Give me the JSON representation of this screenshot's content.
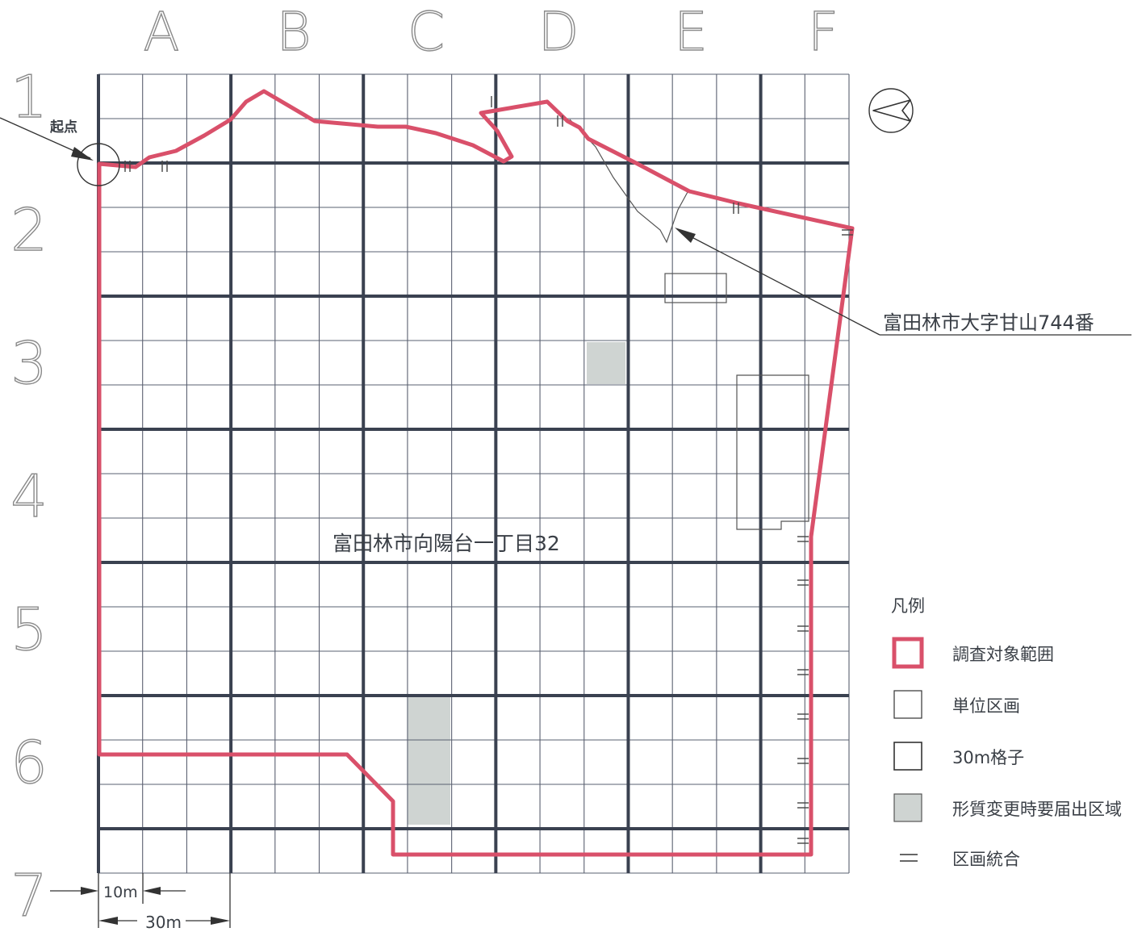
{
  "columns": [
    "A",
    "B",
    "C",
    "D",
    "E",
    "F"
  ],
  "rows": [
    "1",
    "2",
    "3",
    "4",
    "5",
    "6",
    "7"
  ],
  "start_label": "起点",
  "area_label": "富田林市向陽台一丁目32",
  "parcel_label": "富田林市大字甘山744番",
  "scale": {
    "unit_small": "10m",
    "unit_large": "30m"
  },
  "legend": {
    "title": "凡例",
    "items": [
      {
        "key": "survey",
        "label": "調査対象範囲",
        "color": "#d9506a"
      },
      {
        "key": "unit",
        "label": "単位区画"
      },
      {
        "key": "grid30",
        "label": "30m格子"
      },
      {
        "key": "notify",
        "label": "形質変更時要届出区域",
        "color": "#cfd4d2"
      },
      {
        "key": "merge",
        "label": "区画統合"
      }
    ]
  },
  "colors": {
    "boundary": "#d9506a",
    "grid_major": "#3a4150",
    "grid_minor": "#5a6070",
    "shaded": "#cfd4d2"
  }
}
